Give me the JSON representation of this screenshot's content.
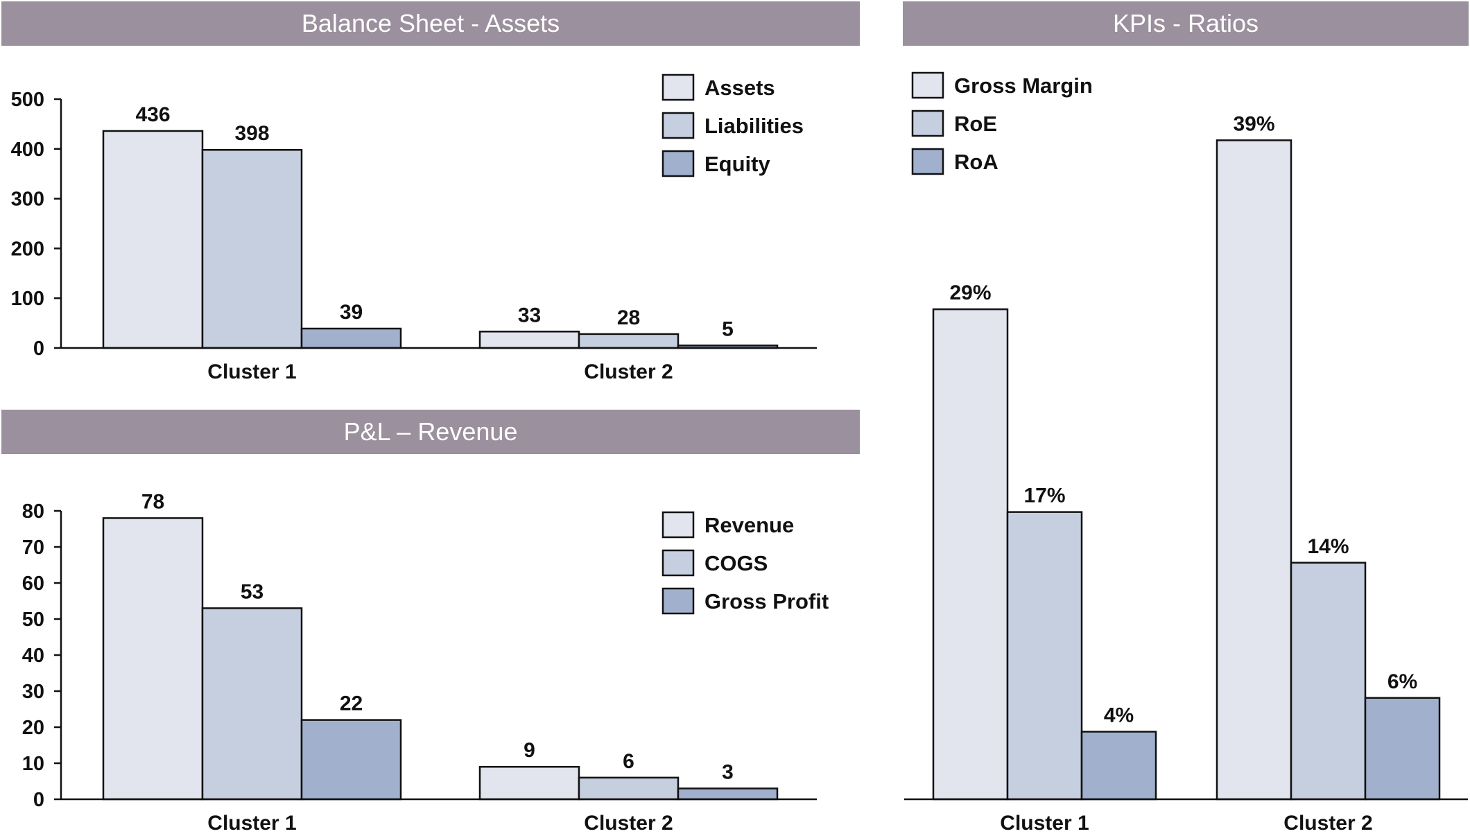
{
  "colors": {
    "header_bg": "#9b909e",
    "series1": "#e2e5ee",
    "series2": "#c6cfe0",
    "series3": "#a1b0cc",
    "stroke": "#111111"
  },
  "chart_data": [
    {
      "type": "bar",
      "title": "Balance Sheet - Assets",
      "categories": [
        "Cluster 1",
        "Cluster 2"
      ],
      "series": [
        {
          "name": "Assets",
          "values": [
            436,
            33
          ],
          "labels": [
            "436",
            "33"
          ]
        },
        {
          "name": "Liabilities",
          "values": [
            398,
            28
          ],
          "labels": [
            "398",
            "28"
          ]
        },
        {
          "name": "Equity",
          "values": [
            39,
            5
          ],
          "labels": [
            "39",
            "5"
          ]
        }
      ],
      "ylim": [
        0,
        500
      ],
      "yticks": [
        0,
        100,
        200,
        300,
        400,
        500
      ],
      "legend": "top-right",
      "grid": false
    },
    {
      "type": "bar",
      "title": "P&L – Revenue",
      "categories": [
        "Cluster 1",
        "Cluster 2"
      ],
      "series": [
        {
          "name": "Revenue",
          "values": [
            78,
            9
          ],
          "labels": [
            "78",
            "9"
          ]
        },
        {
          "name": "COGS",
          "values": [
            53,
            6
          ],
          "labels": [
            "53",
            "6"
          ]
        },
        {
          "name": "Gross Profit",
          "values": [
            22,
            3
          ],
          "labels": [
            "22",
            "3"
          ]
        }
      ],
      "ylim": [
        0,
        80
      ],
      "yticks": [
        0,
        10,
        20,
        30,
        40,
        50,
        60,
        70,
        80
      ],
      "legend": "right",
      "grid": false
    },
    {
      "type": "bar",
      "title": "KPIs - Ratios",
      "categories": [
        "Cluster 1",
        "Cluster 2"
      ],
      "series": [
        {
          "name": "Gross Margin",
          "values": [
            29,
            39
          ],
          "labels": [
            "29%",
            "39%"
          ]
        },
        {
          "name": "RoE",
          "values": [
            17,
            14
          ],
          "labels": [
            "17%",
            "14%"
          ]
        },
        {
          "name": "RoA",
          "values": [
            4,
            6
          ],
          "labels": [
            "4%",
            "6%"
          ]
        }
      ],
      "ylim": [
        0,
        40
      ],
      "legend": "top-left",
      "grid": false
    }
  ]
}
